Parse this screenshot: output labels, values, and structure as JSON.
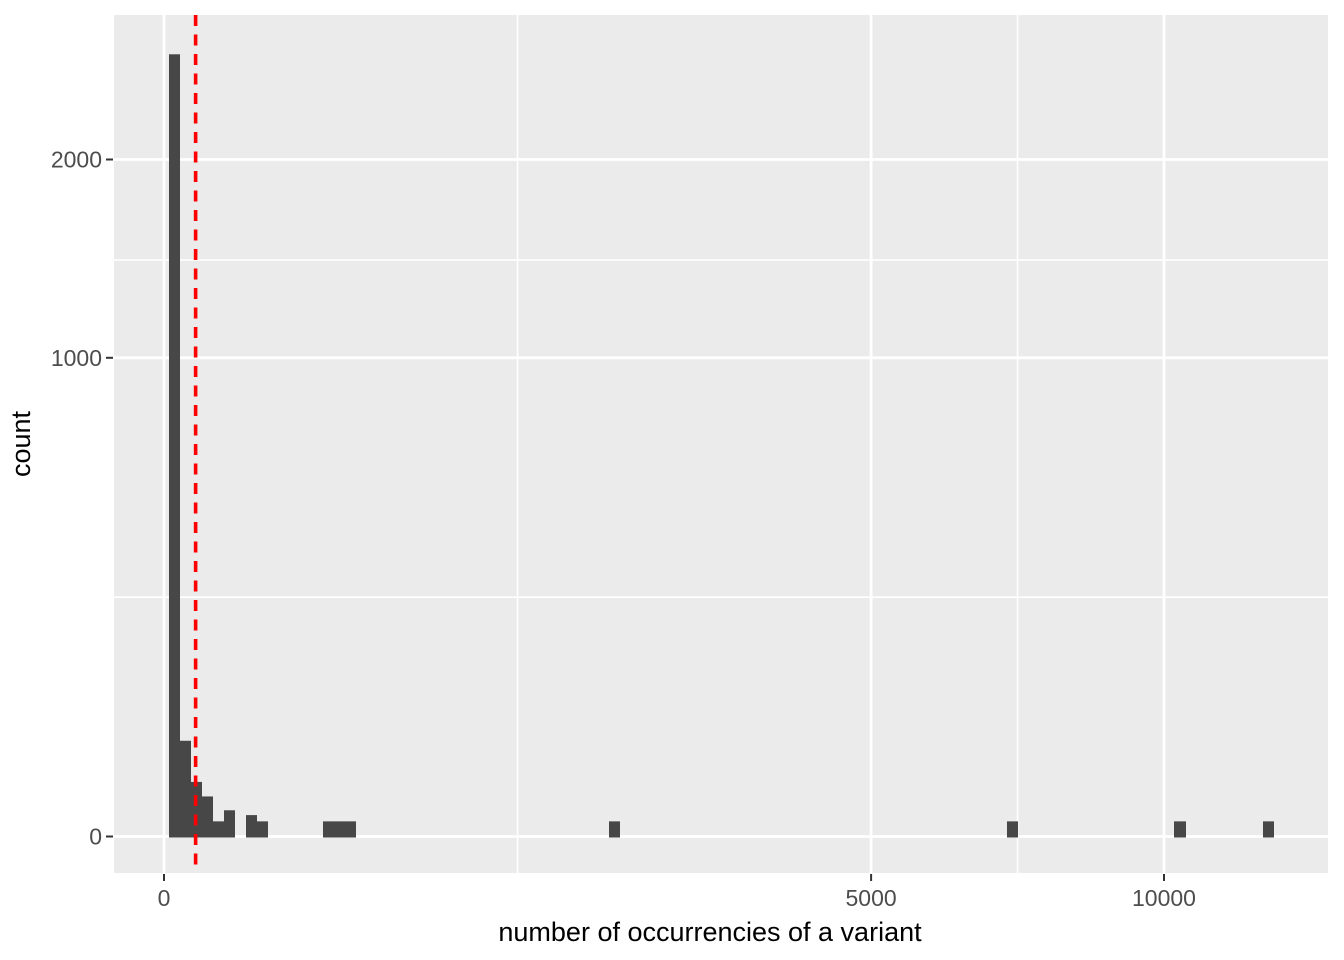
{
  "figure": {
    "background_color": "#FFFFFF",
    "panel_background_color": "#EBEBEB",
    "grid_color": "#FFFFFF",
    "bar_color": "#474747",
    "tick_mark_color": "#333333",
    "tick_label_color": "#4D4D4D",
    "axis_title_color": "#000000"
  },
  "chart_data": {
    "type": "bar",
    "subtype": "histogram",
    "title": "",
    "xlabel": "number of occurrencies of a variant",
    "ylabel": "count",
    "x_scale": "sqrt",
    "y_scale": "sqrt",
    "x_ticks": [
      0,
      5000,
      10000
    ],
    "x_tick_labels": [
      "0",
      "5000",
      "10000"
    ],
    "x_minor_breaks": [
      1250,
      7286
    ],
    "y_ticks": [
      0,
      1000,
      2000
    ],
    "y_tick_labels": [
      "0",
      "1000",
      "2000"
    ],
    "y_minor_breaks": [
      250,
      1450
    ],
    "xlim_data": [
      0,
      12321
    ],
    "ylim_data": [
      0,
      2670
    ],
    "grid": "on",
    "legend_position": "none",
    "bins": [
      {
        "x0": 0.25,
        "x1": 2.56,
        "count": 2670
      },
      {
        "x0": 2.56,
        "x1": 7.29,
        "count": 40
      },
      {
        "x0": 7.29,
        "x1": 14.44,
        "count": 13
      },
      {
        "x0": 14.44,
        "x1": 24.01,
        "count": 7
      },
      {
        "x0": 24.01,
        "x1": 36.0,
        "count": 1
      },
      {
        "x0": 36.0,
        "x1": 50.41,
        "count": 3
      },
      {
        "x0": 67.24,
        "x1": 86.49,
        "count": 2
      },
      {
        "x0": 86.49,
        "x1": 108.16,
        "count": 1
      },
      {
        "x0": 252.81,
        "x1": 289.0,
        "count": 1
      },
      {
        "x0": 289.0,
        "x1": 327.61,
        "count": 1
      },
      {
        "x0": 327.61,
        "x1": 368.64,
        "count": 1
      },
      {
        "x0": 1980.25,
        "x1": 2079.36,
        "count": 1
      },
      {
        "x0": 7106.0,
        "x1": 7293.0,
        "count": 1
      },
      {
        "x0": 10201.0,
        "x1": 10445.0,
        "count": 1
      },
      {
        "x0": 12078.0,
        "x1": 12321.0,
        "count": 1
      }
    ],
    "vline": {
      "x": 10,
      "color": "#FF0000",
      "style": "dashed"
    }
  }
}
